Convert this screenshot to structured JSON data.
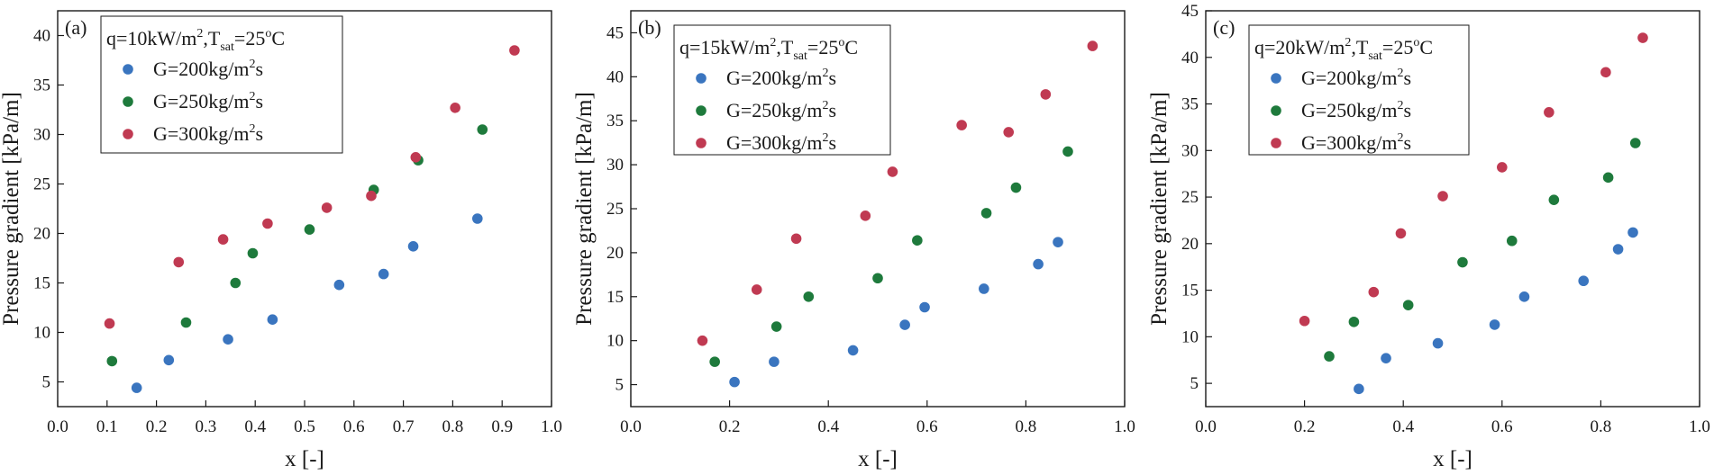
{
  "colors": {
    "s200": "#3a75bf",
    "s250": "#1e7a3c",
    "s300": "#c03a52"
  },
  "chart_data": [
    {
      "type": "scatter",
      "panel_label": "(a)",
      "condition": {
        "prefix": "q=10kW/m",
        "sup": "2",
        "mid": ",T",
        "sub": "sat",
        "eq": "=25",
        "deg": "o",
        "unit": "C"
      },
      "xlabel": "x [-]",
      "ylabel": "Pressure gradient [kPa/m]",
      "xlim": [
        0.0,
        1.0
      ],
      "ylim": [
        2.5,
        42.5
      ],
      "xticks": [
        "0.0",
        "0.1",
        "0.2",
        "0.3",
        "0.4",
        "0.5",
        "0.6",
        "0.7",
        "0.8",
        "0.9",
        "1.0"
      ],
      "yticks": [
        "5",
        "10",
        "15",
        "20",
        "25",
        "30",
        "35",
        "40"
      ],
      "series": [
        {
          "name": "G=200kg/m2s",
          "label_main": "G=200kg/m",
          "label_sup": "2",
          "label_tail": "s",
          "color_key": "s200",
          "x": [
            0.16,
            0.225,
            0.345,
            0.435,
            0.57,
            0.66,
            0.72,
            0.85
          ],
          "y": [
            4.4,
            7.2,
            9.3,
            11.3,
            14.8,
            15.9,
            18.7,
            21.5
          ]
        },
        {
          "name": "G=250kg/m2s",
          "label_main": "G=250kg/m",
          "label_sup": "2",
          "label_tail": "s",
          "color_key": "s250",
          "x": [
            0.11,
            0.26,
            0.36,
            0.395,
            0.51,
            0.64,
            0.73,
            0.86
          ],
          "y": [
            7.1,
            11.0,
            15.0,
            18.0,
            20.4,
            24.4,
            27.4,
            30.5
          ]
        },
        {
          "name": "G=300kg/m2s",
          "label_main": "G=300kg/m",
          "label_sup": "2",
          "label_tail": "s",
          "color_key": "s300",
          "x": [
            0.105,
            0.245,
            0.335,
            0.425,
            0.545,
            0.635,
            0.725,
            0.805,
            0.925
          ],
          "y": [
            10.9,
            17.1,
            19.4,
            21.0,
            22.6,
            23.8,
            27.7,
            32.7,
            38.5
          ]
        }
      ]
    },
    {
      "type": "scatter",
      "panel_label": "(b)",
      "condition": {
        "prefix": "q=15kW/m",
        "sup": "2",
        "mid": ",T",
        "sub": "sat",
        "eq": "=25",
        "deg": "o",
        "unit": "C"
      },
      "xlabel": "x [-]",
      "ylabel": "Pressure gradient [kPa/m]",
      "xlim": [
        0.0,
        1.0
      ],
      "ylim": [
        2.5,
        47.5
      ],
      "xticks": [
        "0.0",
        "0.2",
        "0.4",
        "0.6",
        "0.8",
        "1.0"
      ],
      "yticks": [
        "5",
        "10",
        "15",
        "20",
        "25",
        "30",
        "35",
        "40",
        "45"
      ],
      "series": [
        {
          "name": "G=200kg/m2s",
          "label_main": "G=200kg/m",
          "label_sup": "2",
          "label_tail": "s",
          "color_key": "s200",
          "x": [
            0.21,
            0.29,
            0.45,
            0.555,
            0.595,
            0.715,
            0.825,
            0.865
          ],
          "y": [
            5.3,
            7.6,
            8.9,
            11.8,
            13.8,
            15.9,
            18.7,
            21.2
          ]
        },
        {
          "name": "G=250kg/m2s",
          "label_main": "G=250kg/m",
          "label_sup": "2",
          "label_tail": "s",
          "color_key": "s250",
          "x": [
            0.17,
            0.295,
            0.36,
            0.5,
            0.58,
            0.72,
            0.78,
            0.885
          ],
          "y": [
            7.6,
            11.6,
            15.0,
            17.1,
            21.4,
            24.5,
            27.4,
            31.5
          ]
        },
        {
          "name": "G=300kg/m2s",
          "label_main": "G=300kg/m",
          "label_sup": "2",
          "label_tail": "s",
          "color_key": "s300",
          "x": [
            0.145,
            0.255,
            0.335,
            0.475,
            0.53,
            0.67,
            0.765,
            0.84,
            0.935
          ],
          "y": [
            10.0,
            15.8,
            21.6,
            24.2,
            29.2,
            34.5,
            33.7,
            38.0,
            43.5
          ]
        }
      ]
    },
    {
      "type": "scatter",
      "panel_label": "(c)",
      "condition": {
        "prefix": "q=20kW/m",
        "sup": "2",
        "mid": ",T",
        "sub": "sat",
        "eq": "=25",
        "deg": "o",
        "unit": "C"
      },
      "xlabel": "x [-]",
      "ylabel": "Pressure gradient [kPa/m]",
      "xlim": [
        0.0,
        1.0
      ],
      "ylim": [
        2.5,
        45.0
      ],
      "xticks": [
        "0.0",
        "0.2",
        "0.4",
        "0.6",
        "0.8",
        "1.0"
      ],
      "yticks": [
        "5",
        "10",
        "15",
        "20",
        "25",
        "30",
        "35",
        "40",
        "45"
      ],
      "series": [
        {
          "name": "G=200kg/m2s",
          "label_main": "G=200kg/m",
          "label_sup": "2",
          "label_tail": "s",
          "color_key": "s200",
          "x": [
            0.31,
            0.365,
            0.47,
            0.585,
            0.645,
            0.765,
            0.835,
            0.865
          ],
          "y": [
            4.4,
            7.7,
            9.3,
            11.3,
            14.3,
            16.0,
            19.4,
            21.2
          ]
        },
        {
          "name": "G=250kg/m2s",
          "label_main": "G=250kg/m",
          "label_sup": "2",
          "label_tail": "s",
          "color_key": "s250",
          "x": [
            0.25,
            0.3,
            0.41,
            0.52,
            0.62,
            0.705,
            0.815,
            0.87
          ],
          "y": [
            7.9,
            11.6,
            13.4,
            18.0,
            20.3,
            24.7,
            27.1,
            30.8
          ]
        },
        {
          "name": "G=300kg/m2s",
          "label_main": "G=300kg/m",
          "label_sup": "2",
          "label_tail": "s",
          "color_key": "s300",
          "x": [
            0.2,
            0.34,
            0.395,
            0.48,
            0.6,
            0.695,
            0.81,
            0.885
          ],
          "y": [
            11.7,
            14.8,
            21.1,
            25.1,
            28.2,
            34.1,
            38.4,
            42.1
          ]
        }
      ]
    }
  ]
}
